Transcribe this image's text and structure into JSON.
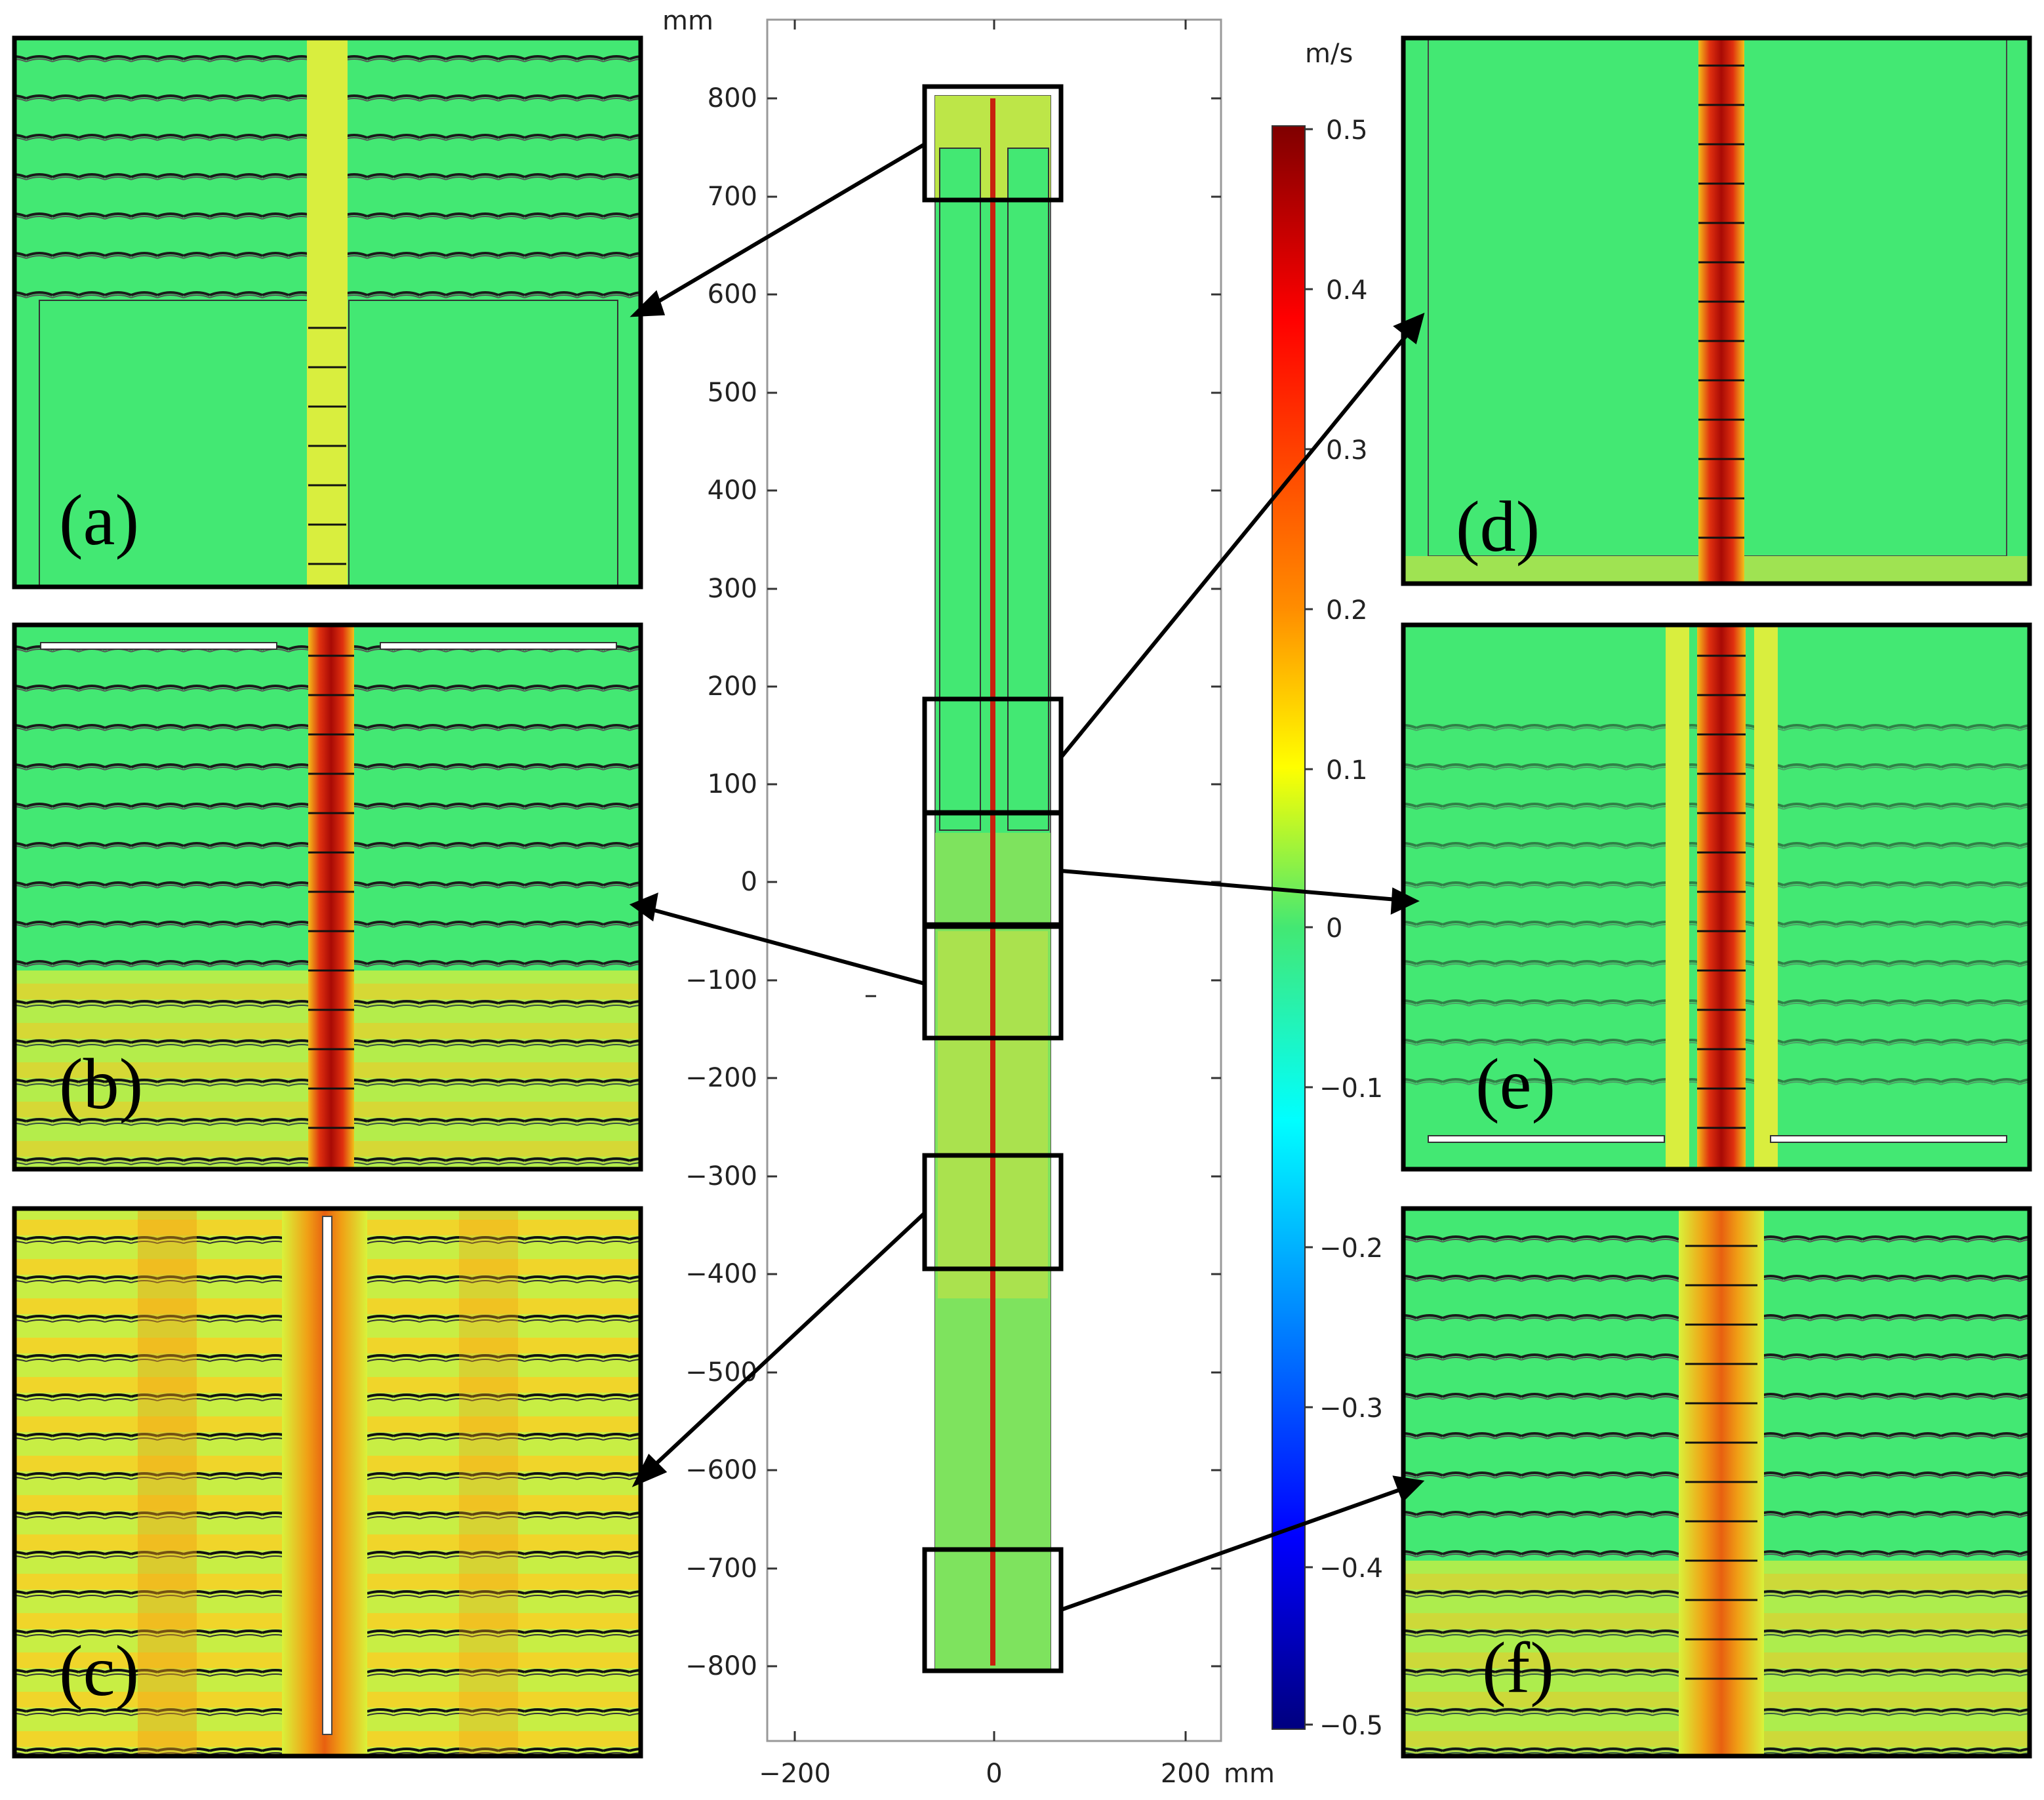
{
  "figure": {
    "center_axis": {
      "unit_label": "mm",
      "y_ticks": [
        "800",
        "700",
        "600",
        "500",
        "400",
        "300",
        "200",
        "100",
        "0",
        "−100",
        "−200",
        "−300",
        "−400",
        "−500",
        "−600",
        "−700",
        "−800"
      ],
      "x_ticks": [
        "−200",
        "0",
        "200"
      ],
      "x_unit_label": "mm"
    },
    "colorbar": {
      "unit_label": "m/s",
      "ticks": [
        "0.5",
        "0.4",
        "0.3",
        "0.2",
        "0.1",
        "0",
        "−0.1",
        "−0.2",
        "−0.3",
        "−0.4",
        "−0.5"
      ],
      "colormap": [
        "#00007f",
        "#0000ff",
        "#007fff",
        "#00ffff",
        "#7fff7f",
        "#ffff00",
        "#ff7f00",
        "#ff0000",
        "#7f0000"
      ]
    },
    "panels": [
      {
        "label": "(a)"
      },
      {
        "label": "(b)"
      },
      {
        "label": "(c)"
      },
      {
        "label": "(d)"
      },
      {
        "label": "(e)"
      },
      {
        "label": "(f)"
      }
    ],
    "colors": {
      "field_green": "#43e873",
      "field_yellow": "#d9f23a",
      "jet_red": "#d8200f",
      "jet_dark": "#9a0a05",
      "frame": "#000000"
    }
  }
}
